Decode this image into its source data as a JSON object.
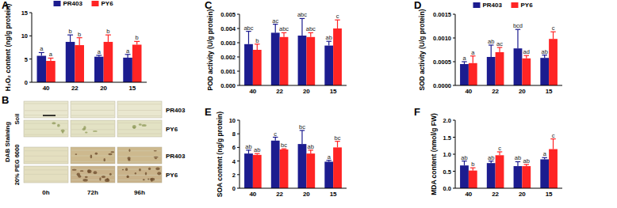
{
  "chart_data": [
    {
      "type": "bar",
      "title": "A",
      "y_label": "H₂O₂ content (ng/g protein)",
      "categories": [
        "40",
        "22",
        "20",
        "15"
      ],
      "series": [
        {
          "name": "PR403",
          "color": "#1c1c8f",
          "values": [
            5.7,
            8.7,
            5.5,
            5.3
          ],
          "errors": [
            0.7,
            1.5,
            0.3,
            0.7
          ],
          "letters": [
            "a",
            "b",
            "a",
            "a"
          ]
        },
        {
          "name": "PY6",
          "color": "#ff2424",
          "values": [
            4.6,
            8.0,
            8.7,
            8.1
          ],
          "errors": [
            0.6,
            1.6,
            1.5,
            0.7
          ],
          "letters": [
            "a",
            "b",
            "b",
            "b"
          ]
        }
      ],
      "ylim": [
        0,
        15
      ],
      "yticks": [
        0,
        5,
        10,
        15
      ],
      "legend": "top"
    },
    {
      "type": "bar",
      "title": "C",
      "y_label": "POD activity (U/g protein)",
      "categories": [
        "40",
        "22",
        "20",
        "15"
      ],
      "series": [
        {
          "name": "PR403",
          "color": "#1c1c8f",
          "values": [
            0.0029,
            0.0037,
            0.0035,
            0.0028
          ],
          "errors": [
            0.0009,
            0.0006,
            0.0012,
            0.0003
          ],
          "letters": [
            "abc",
            "ac",
            "abc",
            "ab"
          ]
        },
        {
          "name": "PY6",
          "color": "#ff2424",
          "values": [
            0.0025,
            0.0034,
            0.0034,
            0.004
          ],
          "errors": [
            0.0004,
            0.0003,
            0.0003,
            0.0006
          ],
          "letters": [
            "b",
            "abc",
            "abc",
            "c"
          ]
        }
      ],
      "ylim": [
        0,
        0.005
      ],
      "yticks": [
        {
          "value": 0,
          "label": "0.000"
        },
        0.001,
        0.002,
        0.003,
        0.004,
        {
          "value": 0.005,
          "label": "0.005"
        }
      ],
      "legend": "none"
    },
    {
      "type": "bar",
      "title": "D",
      "y_label": "SOD activity (U/g protein)",
      "categories": [
        "40",
        "22",
        "20",
        "15"
      ],
      "series": [
        {
          "name": "PR403",
          "color": "#1c1c8f",
          "values": [
            0.00045,
            0.0006,
            0.00078,
            0.00058
          ],
          "errors": [
            5e-05,
            0.00025,
            0.0004,
            6e-05
          ],
          "letters": [
            "a",
            "ab",
            "bcd",
            "ab"
          ]
        },
        {
          "name": "PY6",
          "color": "#ff2424",
          "values": [
            0.00047,
            0.0007,
            0.00057,
            0.00098
          ],
          "errors": [
            0.00015,
            0.0001,
            6e-05,
            0.00015
          ],
          "letters": [
            "a",
            "ac",
            "ad",
            "c"
          ]
        }
      ],
      "ylim": [
        0,
        0.0015
      ],
      "yticks": [
        {
          "value": 0,
          "label": "0.0000"
        },
        0.0005,
        {
          "value": 0.001,
          "label": "0.0010"
        },
        0.0015
      ],
      "legend": "top"
    },
    {
      "type": "bar",
      "title": "E",
      "y_label": "SOA content (ng/g protein)",
      "categories": [
        "40",
        "22",
        "20",
        "15"
      ],
      "series": [
        {
          "name": "PR403",
          "color": "#1c1c8f",
          "values": [
            5.1,
            7.0,
            6.5,
            3.9
          ],
          "errors": [
            0.5,
            0.5,
            2.0,
            0.2
          ],
          "letters": [
            "ab",
            "c",
            "bc",
            "a"
          ]
        },
        {
          "name": "PY6",
          "color": "#ff2424",
          "values": [
            4.9,
            5.7,
            5.1,
            6.0
          ],
          "errors": [
            0.2,
            0.1,
            0.5,
            0.9
          ],
          "letters": [
            "ab",
            "bc",
            "ab",
            "bc"
          ]
        }
      ],
      "ylim": [
        0,
        10
      ],
      "yticks": [
        0,
        2,
        4,
        6,
        8,
        10
      ],
      "legend": "none"
    },
    {
      "type": "bar",
      "title": "F",
      "y_label": "MDA content (nmol/g FW)",
      "categories": [
        "40",
        "22",
        "20",
        "15"
      ],
      "series": [
        {
          "name": "PR403",
          "color": "#1c1c8f",
          "values": [
            0.67,
            0.74,
            0.65,
            0.85
          ],
          "errors": [
            0.13,
            0.06,
            0.13,
            0.05
          ],
          "letters": [
            "ab",
            "ab",
            "ab",
            "a"
          ]
        },
        {
          "name": "PY6",
          "color": "#ff2424",
          "values": [
            0.52,
            0.97,
            0.65,
            1.15
          ],
          "errors": [
            0.08,
            0.1,
            0.05,
            0.3
          ],
          "letters": [
            "b",
            "c",
            "ab",
            "c"
          ]
        }
      ],
      "ylim": [
        0,
        2
      ],
      "yticks": [
        {
          "value": 0,
          "label": "0.0"
        },
        0.5,
        {
          "value": 1,
          "label": "1.0"
        },
        1.5,
        {
          "value": 2,
          "label": "2.0"
        }
      ],
      "legend": "none"
    }
  ],
  "image_panel": {
    "label": "B",
    "stain_label": "DAB Staining",
    "conditions": [
      "Soil",
      "20% PEG 6000"
    ],
    "genotypes": [
      "PR403",
      "PY6"
    ],
    "times": [
      "0h",
      "72h",
      "96h"
    ]
  }
}
